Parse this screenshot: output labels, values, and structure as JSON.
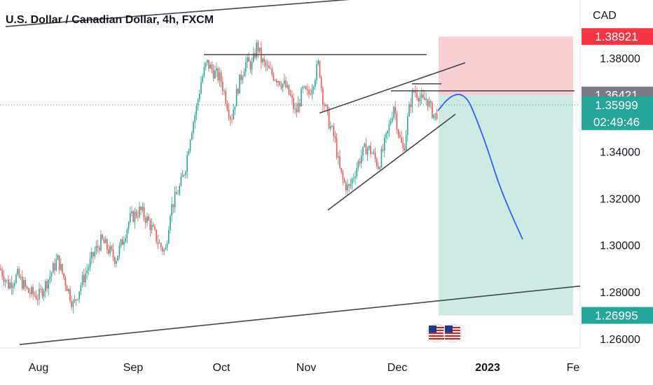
{
  "chart_data": {
    "type": "candlestick",
    "title": "U.S. Dollar / Canadian Dollar, 4h, FXCM",
    "currency": "CAD",
    "ylim": [
      1.2545,
      1.4075
    ],
    "y_ticks": [
      "1.38000",
      "1.34000",
      "1.32000",
      "1.30000",
      "1.28000",
      "1.26000"
    ],
    "x_ticks": [
      {
        "label": "Aug",
        "bold": false
      },
      {
        "label": "Sep",
        "bold": false
      },
      {
        "label": "Oct",
        "bold": false
      },
      {
        "label": "Nov",
        "bold": false
      },
      {
        "label": "Dec",
        "bold": false
      },
      {
        "label": "2023",
        "bold": true
      },
      {
        "label": "Fe",
        "bold": false
      }
    ],
    "price_labels": {
      "target_high": "1.38921",
      "entry": "1.36421",
      "current": "1.35999",
      "countdown": "02:49:46",
      "target_low": "1.26995"
    },
    "colors": {
      "up": "#26a69a",
      "down": "#ef5350",
      "stop_zone": "#f8cfd2",
      "profit_zone": "#cdeae3",
      "entry_badge": "#787b86",
      "current_badge": "#26a69a",
      "stop_badge": "#f23645",
      "projection": "#2962ff"
    },
    "price_path": [
      [
        0,
        1.29
      ],
      [
        12,
        1.283
      ],
      [
        25,
        1.287
      ],
      [
        40,
        1.28
      ],
      [
        55,
        1.278
      ],
      [
        70,
        1.286
      ],
      [
        82,
        1.294
      ],
      [
        95,
        1.283
      ],
      [
        105,
        1.274
      ],
      [
        115,
        1.283
      ],
      [
        125,
        1.29
      ],
      [
        135,
        1.297
      ],
      [
        145,
        1.302
      ],
      [
        155,
        1.298
      ],
      [
        165,
        1.294
      ],
      [
        175,
        1.302
      ],
      [
        185,
        1.311
      ],
      [
        200,
        1.315
      ],
      [
        212,
        1.31
      ],
      [
        220,
        1.305
      ],
      [
        228,
        1.3
      ],
      [
        236,
        1.297
      ],
      [
        243,
        1.315
      ],
      [
        250,
        1.32
      ],
      [
        258,
        1.326
      ],
      [
        265,
        1.334
      ],
      [
        272,
        1.348
      ],
      [
        280,
        1.358
      ],
      [
        287,
        1.37
      ],
      [
        295,
        1.378
      ],
      [
        305,
        1.374
      ],
      [
        315,
        1.371
      ],
      [
        323,
        1.362
      ],
      [
        330,
        1.354
      ],
      [
        340,
        1.368
      ],
      [
        350,
        1.378
      ],
      [
        360,
        1.377
      ],
      [
        367,
        1.386
      ],
      [
        373,
        1.379
      ],
      [
        385,
        1.374
      ],
      [
        397,
        1.371
      ],
      [
        407,
        1.368
      ],
      [
        415,
        1.363
      ],
      [
        422,
        1.356
      ],
      [
        432,
        1.366
      ],
      [
        440,
        1.364
      ],
      [
        448,
        1.371
      ],
      [
        455,
        1.378
      ],
      [
        460,
        1.364
      ],
      [
        470,
        1.352
      ],
      [
        478,
        1.345
      ],
      [
        484,
        1.333
      ],
      [
        490,
        1.327
      ],
      [
        498,
        1.324
      ],
      [
        506,
        1.331
      ],
      [
        515,
        1.338
      ],
      [
        523,
        1.342
      ],
      [
        530,
        1.34
      ],
      [
        540,
        1.334
      ],
      [
        548,
        1.342
      ],
      [
        555,
        1.35
      ],
      [
        562,
        1.36
      ],
      [
        570,
        1.346
      ],
      [
        576,
        1.34
      ],
      [
        581,
        1.352
      ],
      [
        585,
        1.36
      ],
      [
        590,
        1.366
      ],
      [
        596,
        1.365
      ],
      [
        603,
        1.361
      ],
      [
        609,
        1.363
      ],
      [
        615,
        1.358
      ],
      [
        621,
        1.355
      ],
      [
        625,
        1.3575
      ]
    ],
    "projection": [
      [
        625,
        1.3575
      ],
      [
        640,
        1.363
      ],
      [
        655,
        1.365
      ],
      [
        668,
        1.3625
      ],
      [
        680,
        1.354
      ],
      [
        695,
        1.342
      ],
      [
        712,
        1.326
      ],
      [
        730,
        1.313
      ],
      [
        746,
        1.3025
      ]
    ],
    "trendlines": [
      {
        "from": [
          8,
          1.3935
        ],
        "to": [
          538,
          1.406
        ]
      },
      {
        "from": [
          28,
          1.2575
        ],
        "to": [
          828,
          1.2825
        ]
      },
      {
        "from": [
          291,
          1.3815
        ],
        "to": [
          609,
          1.3815
        ]
      },
      {
        "from": [
          558,
          1.366
        ],
        "to": [
          820,
          1.366
        ]
      },
      {
        "from": [
          588,
          1.369
        ],
        "to": [
          630,
          1.369
        ]
      },
      {
        "from": [
          456,
          1.3565
        ],
        "to": [
          664,
          1.378
        ]
      },
      {
        "from": [
          468,
          1.315
        ],
        "to": [
          650,
          1.356
        ]
      }
    ],
    "position": {
      "x_start": 626,
      "x_end": 818,
      "stop": 1.38921,
      "entry": 1.36421,
      "target": 1.26995
    }
  }
}
